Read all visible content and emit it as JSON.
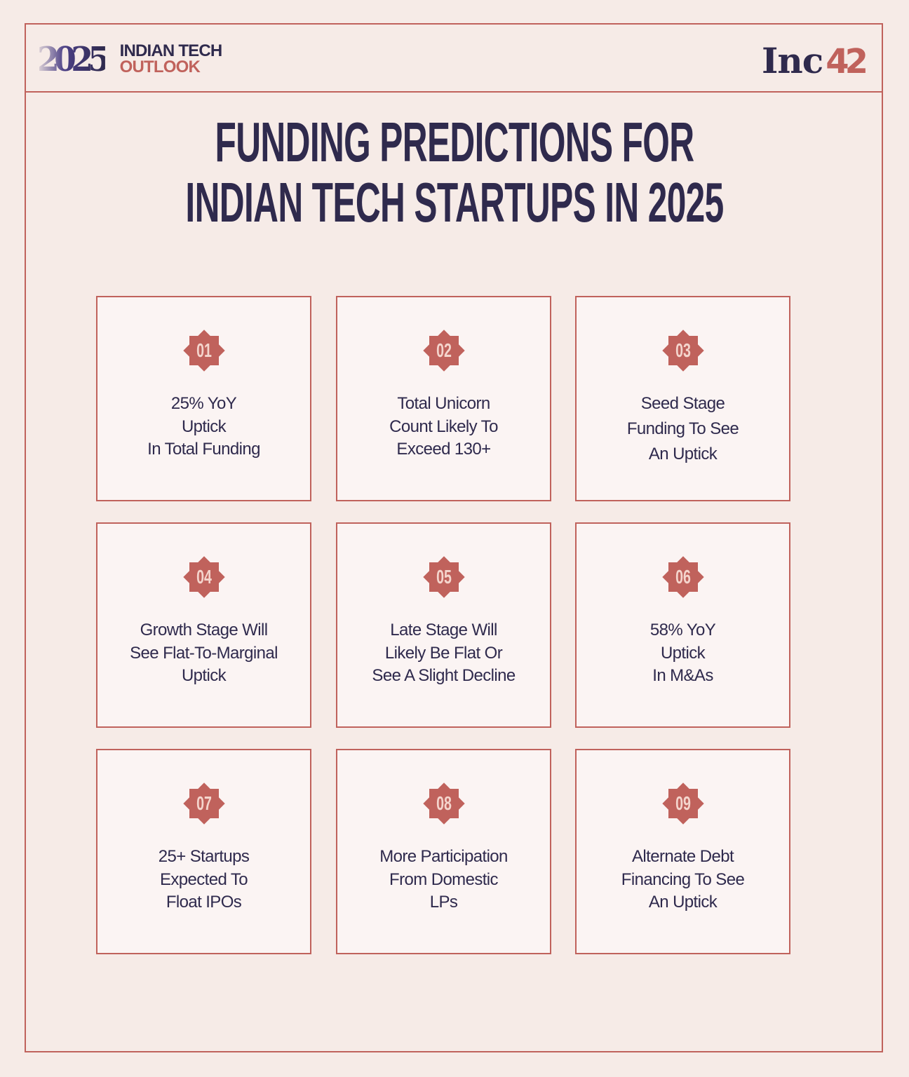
{
  "header": {
    "brand_year": "2025",
    "brand_line1": "INDIAN TECH",
    "brand_line2": "OUTLOOK",
    "publisher_word": "Inc",
    "publisher_num": "42"
  },
  "title": {
    "line1": "FUNDING PREDICTIONS FOR",
    "line2": "INDIAN TECH STARTUPS IN 2025"
  },
  "colors": {
    "background": "#f6ebe7",
    "card_background": "#fbf4f3",
    "accent": "#c0625c",
    "text_dark": "#2f2a4d",
    "badge_text": "#f4d5cd"
  },
  "predictions": [
    {
      "number": "01",
      "lines": [
        "25% YoY",
        "Uptick",
        "In Total Funding"
      ]
    },
    {
      "number": "02",
      "lines": [
        "Total Unicorn",
        "Count Likely To",
        "Exceed 130+"
      ]
    },
    {
      "number": "03",
      "lines": [
        "Seed Stage",
        "Funding To See",
        "An Uptick"
      ]
    },
    {
      "number": "04",
      "lines": [
        "Growth Stage Will",
        "See Flat-To-Marginal",
        "Uptick"
      ]
    },
    {
      "number": "05",
      "lines": [
        "Late Stage Will",
        "Likely Be Flat Or",
        "See A Slight Decline"
      ]
    },
    {
      "number": "06",
      "lines": [
        "58% YoY",
        "Uptick",
        "In M&As"
      ]
    },
    {
      "number": "07",
      "lines": [
        "25+ Startups",
        "Expected To",
        "Float IPOs"
      ]
    },
    {
      "number": "08",
      "lines": [
        "More Participation",
        "From Domestic",
        "LPs"
      ]
    },
    {
      "number": "09",
      "lines": [
        "Alternate Debt",
        "Financing To See",
        "An Uptick"
      ]
    }
  ]
}
